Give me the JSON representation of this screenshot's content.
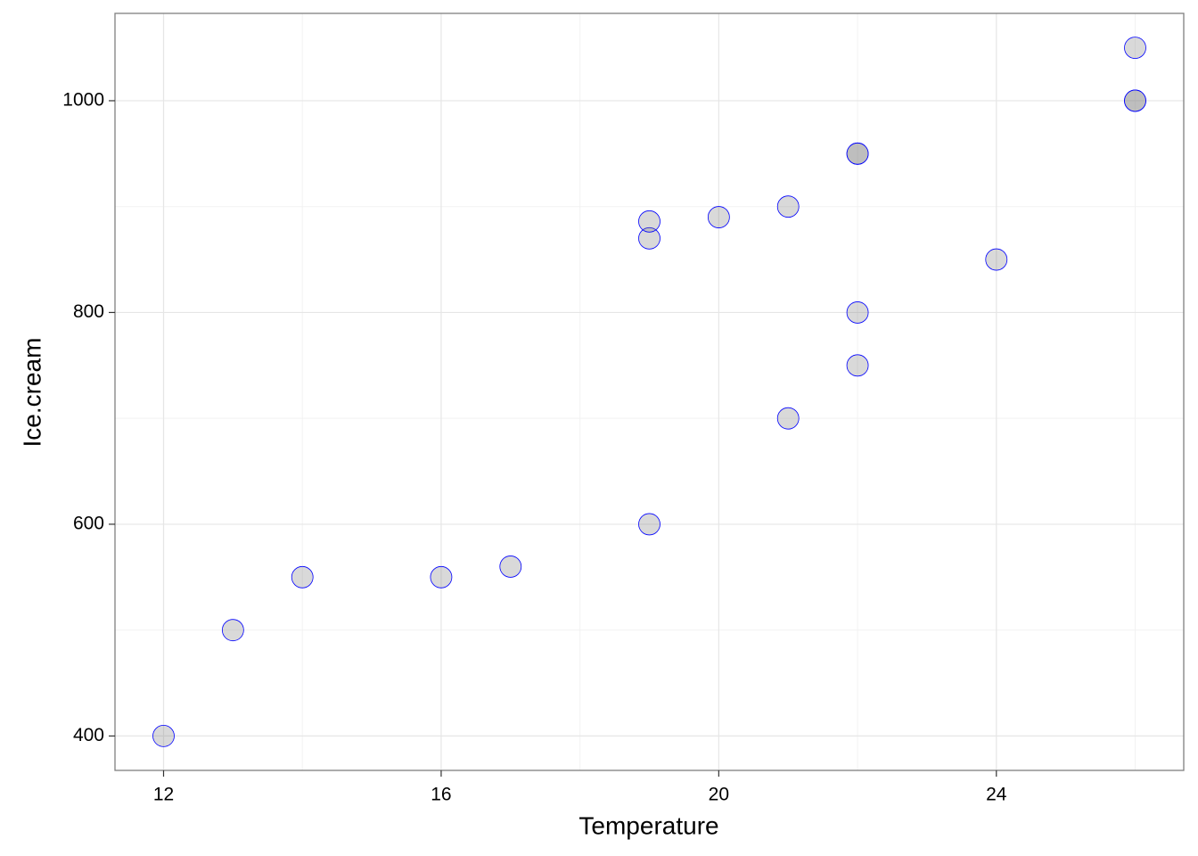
{
  "chart_data": {
    "type": "scatter",
    "x_label": "Temperature",
    "y_label": "Ice.cream",
    "series": [
      {
        "x": [
          12,
          13,
          14,
          16,
          17,
          19,
          19,
          19,
          20,
          21,
          21,
          22,
          22,
          22,
          22,
          24,
          26,
          26,
          26
        ],
        "values": [
          400,
          500,
          550,
          550,
          560,
          600,
          870,
          886,
          890,
          900,
          700,
          950,
          950,
          800,
          750,
          850,
          1050,
          1000,
          1000
        ],
        "color": "#0000ff",
        "fill": "#808080",
        "alpha": 0.3
      }
    ],
    "xlim": [
      11.3,
      26.7
    ],
    "ylim": [
      367.5,
      1082.5
    ],
    "xticks": [
      12,
      16,
      20,
      24
    ],
    "yticks": [
      400,
      600,
      800,
      1000
    ],
    "xminorticks": [
      14,
      18,
      22,
      26
    ],
    "yminorticks": [
      500,
      700,
      900
    ],
    "grid": true
  }
}
